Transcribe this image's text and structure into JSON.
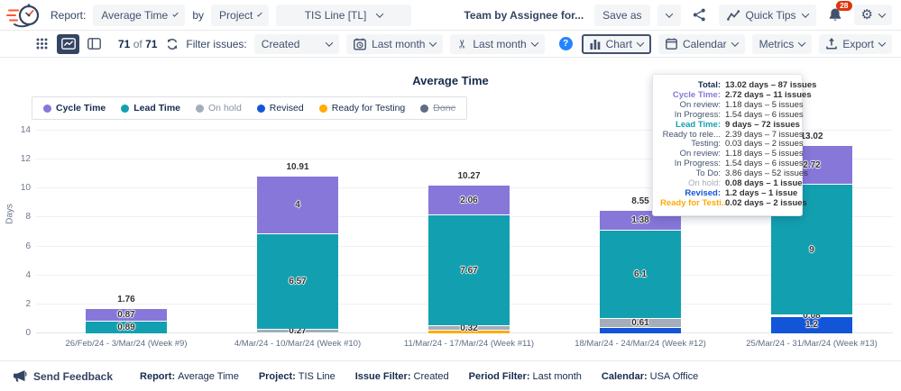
{
  "header": {
    "report_label": "Report:",
    "report_value": "Average Time",
    "by_label": "by",
    "group_by_value": "Project",
    "project_value": "TIS Line [TL]",
    "team_text": "Team by Assignee for...",
    "save_as_label": "Save as",
    "quick_tips_label": "Quick Tips",
    "notification_count": "28"
  },
  "toolbar": {
    "issues_current": "71",
    "issues_of": "of",
    "issues_total": "71",
    "filter_issues_label": "Filter issues:",
    "issue_filter_value": "Created",
    "period_filter_value": "Last month",
    "trim_filter_value": "Last month",
    "help_glyph": "?",
    "chart_button_label": "Chart",
    "calendar_button_label": "Calendar",
    "metrics_button_label": "Metrics",
    "export_button_label": "Export"
  },
  "chart": {
    "title": "Average Time",
    "ylabel": "Days",
    "legend": [
      {
        "label": "Cycle Time",
        "color": "#8777D9",
        "bold": true
      },
      {
        "label": "Lead Time",
        "color": "#12A0B0",
        "bold": true
      },
      {
        "label": "On hold",
        "color": "#A5ADBA",
        "muted": true
      },
      {
        "label": "Revised",
        "color": "#1255D9"
      },
      {
        "label": "Ready for Testing",
        "color": "#FFAB00"
      },
      {
        "label": "Done",
        "color": "#5E6C84",
        "struck": true,
        "muted": true
      }
    ]
  },
  "chart_data": {
    "type": "bar",
    "stacked": true,
    "title": "Average Time",
    "xlabel": "",
    "ylabel": "Days",
    "ylim": [
      0,
      14
    ],
    "yticks": [
      0,
      2,
      4,
      6,
      8,
      10,
      12,
      14
    ],
    "grid": true,
    "legend_position": "top-left",
    "categories": [
      "26/Feb/24 - 3/Mar/24 (Week #9)",
      "4/Mar/24 - 10/Mar/24 (Week #10)",
      "11/Mar/24 - 17/Mar/24 (Week #11)",
      "18/Mar/24 - 24/Mar/24 (Week #12)",
      "25/Mar/24 - 31/Mar/24 (Week #13)"
    ],
    "stack_order": [
      "Revised",
      "Ready for Testing",
      "On hold",
      "Lead Time",
      "Cycle Time"
    ],
    "series": [
      {
        "name": "Cycle Time",
        "color": "#8777D9",
        "values": [
          0.87,
          4,
          2.06,
          1.38,
          2.72
        ],
        "labels": [
          "0.87",
          "4",
          "2.06",
          "1.38",
          "2.72"
        ]
      },
      {
        "name": "Lead Time",
        "color": "#12A0B0",
        "values": [
          0.89,
          6.57,
          7.67,
          6.1,
          9
        ],
        "labels": [
          "0.89",
          "6.57",
          "7.67",
          "6.1",
          "9"
        ]
      },
      {
        "name": "On hold",
        "color": "#A5ADBA",
        "values": [
          0,
          0.27,
          0.32,
          0.61,
          0.08
        ],
        "labels": [
          "",
          "0.27",
          "0.32",
          "0.61",
          "0.08"
        ]
      },
      {
        "name": "Revised",
        "color": "#1255D9",
        "values": [
          0,
          0,
          0,
          0.46,
          1.2
        ],
        "labels": [
          "",
          "",
          "",
          "",
          "1.2"
        ]
      },
      {
        "name": "Ready for Testing",
        "color": "#FFAB00",
        "values": [
          0,
          0.07,
          0.22,
          0,
          0.02
        ],
        "labels": [
          "",
          "",
          "",
          "",
          ""
        ]
      },
      {
        "name": "Done",
        "color": "#5E6C84",
        "values": [
          0,
          0,
          0,
          0,
          0
        ],
        "labels": [
          "",
          "",
          "",
          "",
          ""
        ]
      }
    ],
    "totals": [
      "1.76",
      "10.91",
      "10.27",
      "8.55",
      "13.02"
    ]
  },
  "tooltip": {
    "rows": [
      {
        "label": "Total:",
        "value": "13.02 days – 87 issues",
        "label_color": "#172B4D",
        "bold_label": true,
        "bold_value": true
      },
      {
        "label": "Cycle Time:",
        "value": "2.72 days – 11 issues",
        "label_color": "#8777D9",
        "bold_label": true,
        "bold_value": true
      },
      {
        "label": "On review:",
        "value": "1.18 days – 5 issues",
        "label_color": "#44546F"
      },
      {
        "label": "In Progress:",
        "value": "1.54 days – 6 issues",
        "label_color": "#44546F"
      },
      {
        "label": "Lead Time:",
        "value": "9 days – 72 issues",
        "label_color": "#12A0B0",
        "bold_label": true,
        "bold_value": true
      },
      {
        "label": "Ready to rele...",
        "value": "2.39 days – 7 issues",
        "label_color": "#44546F"
      },
      {
        "label": "Testing:",
        "value": "0.03 days – 2 issues",
        "label_color": "#44546F"
      },
      {
        "label": "On review:",
        "value": "1.18 days – 5 issues",
        "label_color": "#44546F"
      },
      {
        "label": "In Progress:",
        "value": "1.54 days – 6 issues",
        "label_color": "#44546F"
      },
      {
        "label": "To Do:",
        "value": "3.86 days – 52 issues",
        "label_color": "#44546F"
      },
      {
        "label": "On hold:",
        "value": "0.08 days – 1 issue",
        "label_color": "#A5ADBA",
        "bold_value": true
      },
      {
        "label": "Revised:",
        "value": "1.2 days – 1 issue",
        "label_color": "#1255D9",
        "bold_label": true,
        "bold_value": true
      },
      {
        "label": "Ready for Testi...",
        "value": "0.02 days – 2 issues",
        "label_color": "#FFAB00",
        "bold_label": true,
        "bold_value": true
      }
    ]
  },
  "footer": {
    "feedback_label": "Send Feedback",
    "items": [
      {
        "label": "Report:",
        "value": "Average Time"
      },
      {
        "label": "Project:",
        "value": "TIS Line"
      },
      {
        "label": "Issue Filter:",
        "value": "Created"
      },
      {
        "label": "Period Filter:",
        "value": "Last month"
      },
      {
        "label": "Calendar:",
        "value": "USA Office"
      }
    ]
  },
  "colors": {
    "accent_navy": "#344563",
    "badge_red": "#DE350B",
    "help_blue": "#2684FF",
    "speed_orange": "#FF5630"
  }
}
